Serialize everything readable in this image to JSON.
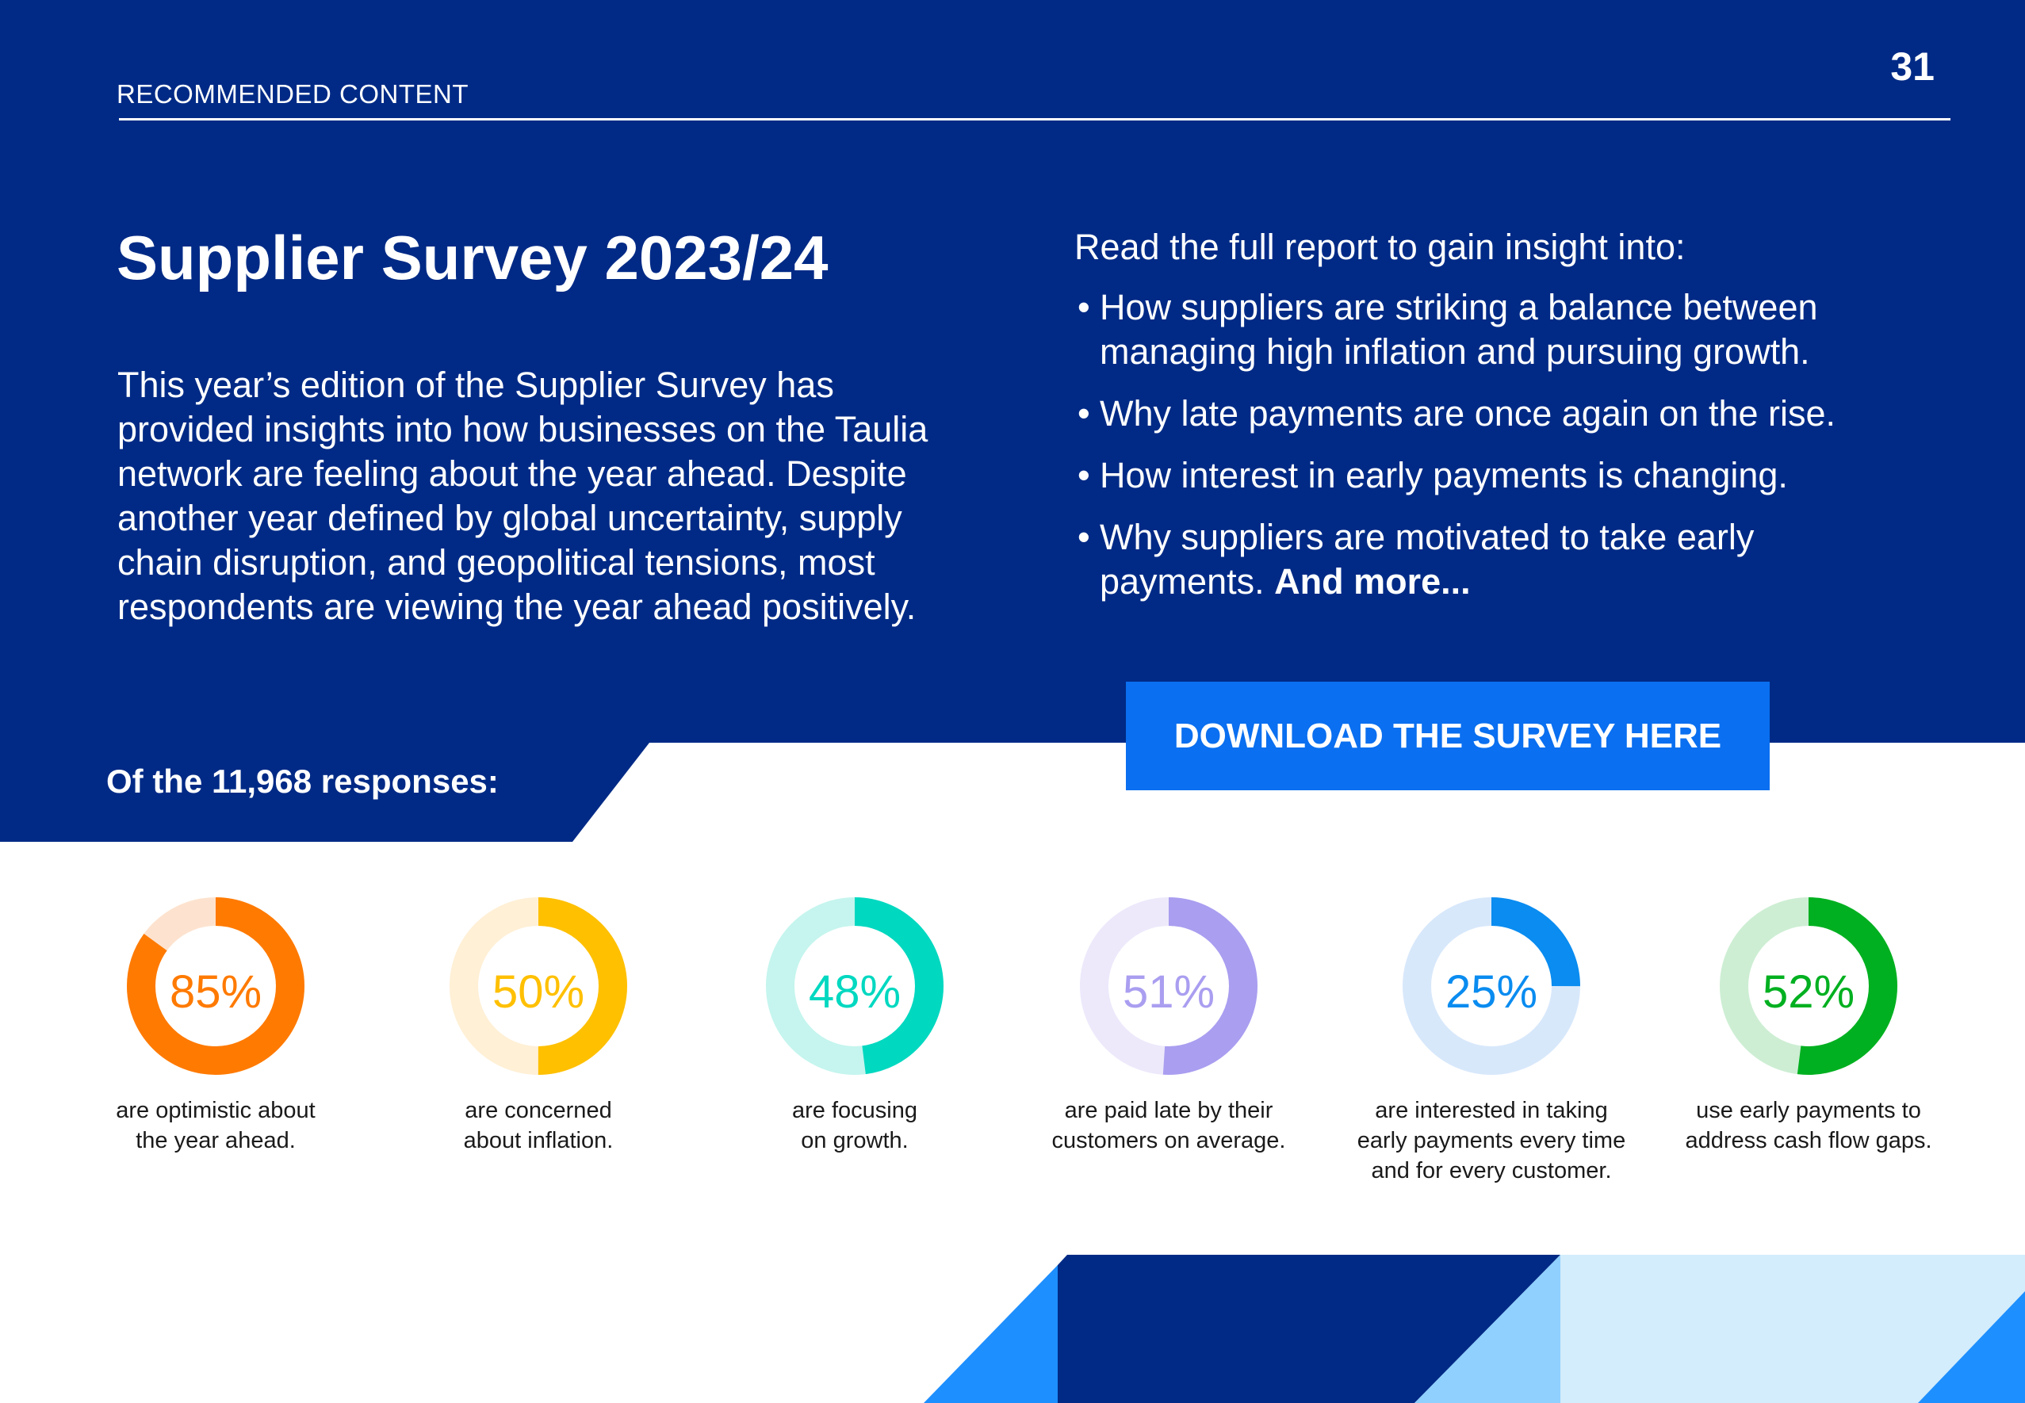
{
  "header": {
    "section": "RECOMMENDED CONTENT",
    "page_number": "31"
  },
  "title": "Supplier Survey 2023/24",
  "intro": "This year’s edition of the Supplier Survey has provided insights into how businesses on the Taulia network are feeling about the year ahead. Despite another year defined by global uncertainty, supply chain disruption, and geopolitical tensions, most respondents are viewing the year ahead positively.",
  "report": {
    "lead": "Read the full report to gain insight into:",
    "bullets": [
      {
        "text": "How suppliers are striking a balance between managing high inflation and pursuing growth."
      },
      {
        "text": "Why late payments are once again on the rise."
      },
      {
        "text": "How interest in early payments is changing."
      },
      {
        "text": "Why suppliers are motivated to take early payments.",
        "bold_suffix": "And more..."
      }
    ]
  },
  "cta": {
    "label": "DOWNLOAD THE SURVEY HERE"
  },
  "responses_label": "Of the 11,968 responses:",
  "colors": {
    "navy": "#002a86",
    "button": "#0a6ff0"
  },
  "stats": [
    {
      "value": 85,
      "label": "85%",
      "caption": "are optimistic about the year ahead.",
      "color": "#ff7a00",
      "track": "#fde3cf"
    },
    {
      "value": 50,
      "label": "50%",
      "caption": "are concerned about inflation.",
      "color": "#ffc000",
      "track": "#fff0d6"
    },
    {
      "value": 48,
      "label": "48%",
      "caption": "are focusing on growth.",
      "color": "#00d8c0",
      "track": "#c5f5ee"
    },
    {
      "value": 51,
      "label": "51%",
      "caption": "are paid late by their customers on average.",
      "color": "#a99ef0",
      "track": "#ede9fb"
    },
    {
      "value": 25,
      "label": "25%",
      "caption": "are interested in taking early payments every time and for every customer.",
      "color": "#0a8cf0",
      "track": "#d8e8fb"
    },
    {
      "value": 52,
      "label": "52%",
      "caption": "use early payments to address cash flow gaps.",
      "color": "#00b020",
      "track": "#cdeed3"
    }
  ]
}
